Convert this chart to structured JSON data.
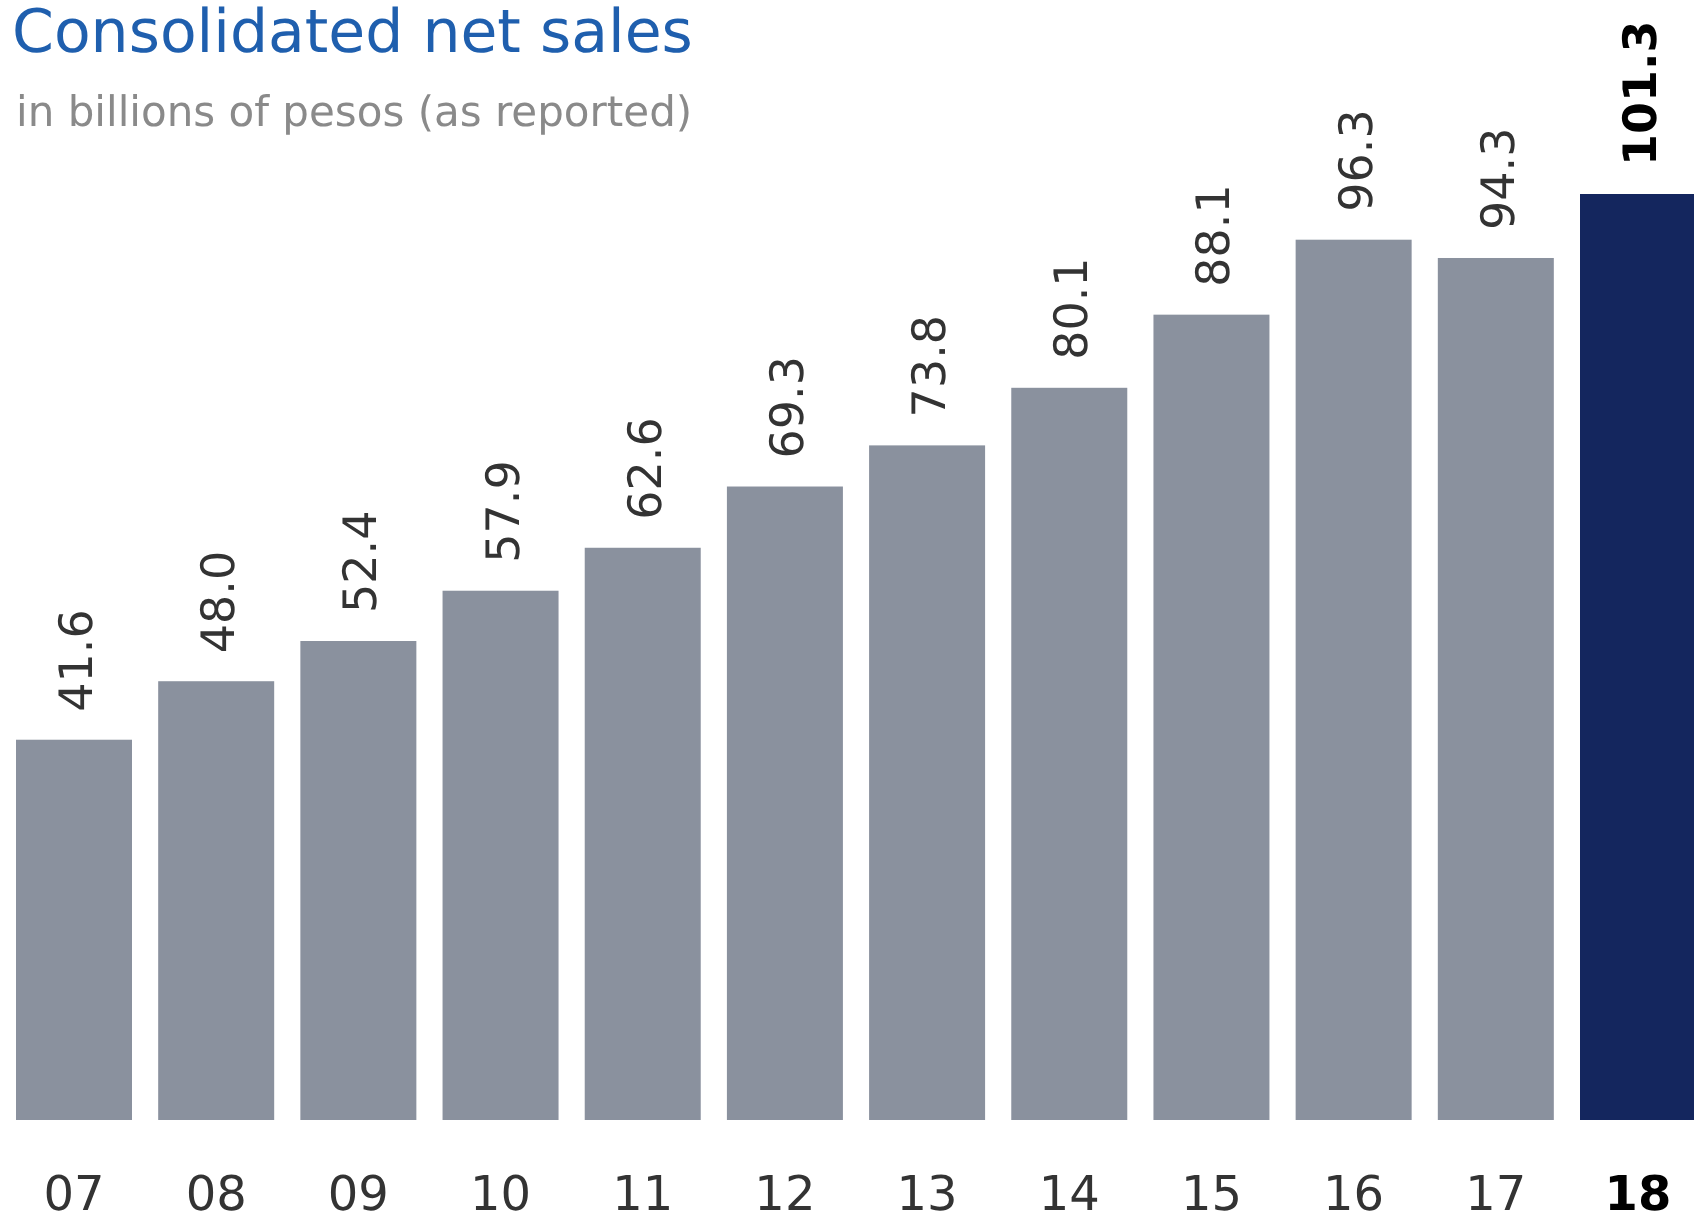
{
  "chart_data": {
    "type": "bar",
    "title": "Consolidated net sales",
    "subtitle": "in billions of pesos (as reported)",
    "categories": [
      "07",
      "08",
      "09",
      "10",
      "11",
      "12",
      "13",
      "14",
      "15",
      "16",
      "17",
      "18"
    ],
    "values": [
      41.6,
      48.0,
      52.4,
      57.9,
      62.6,
      69.3,
      73.8,
      80.1,
      88.1,
      96.3,
      94.3,
      101.3
    ],
    "colors": [
      "#8a919e",
      "#8a919e",
      "#8a919e",
      "#8a919e",
      "#8a919e",
      "#8a919e",
      "#8a919e",
      "#8a919e",
      "#8a919e",
      "#8a919e",
      "#8a919e",
      "#14265e"
    ],
    "value_labels": [
      "41.6",
      "48.0",
      "52.4",
      "57.9",
      "62.6",
      "69.3",
      "73.8",
      "80.1",
      "88.1",
      "96.3",
      "94.3",
      "101.3"
    ],
    "data_labels": true
  }
}
